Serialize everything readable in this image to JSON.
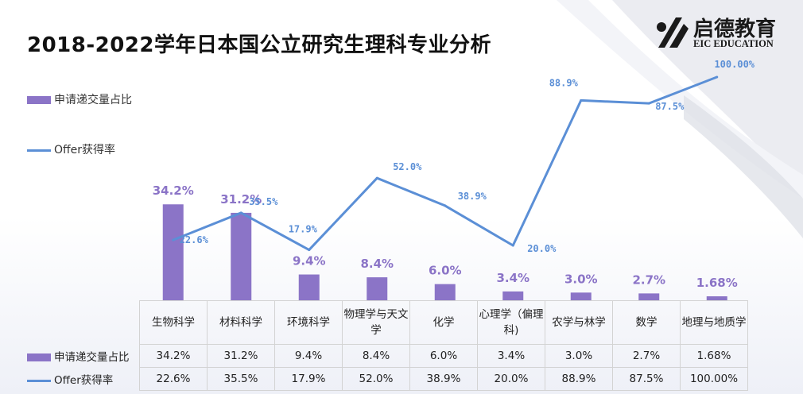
{
  "title": "2018-2022学年日本国公立研究生理科专业分析",
  "logo": {
    "cn": "启德教育",
    "en": "EIC EDUCATION"
  },
  "legend": {
    "bar": "申请递交量占比",
    "line": "Offer获得率"
  },
  "colors": {
    "bar": "#8b74c7",
    "line": "#5b8fd6",
    "bar_label": "#8b74c7",
    "line_label": "#5b8fd6"
  },
  "table": {
    "headers": [
      "生物科学",
      "材料科学",
      "环境科学",
      "物理学与天文学",
      "化学",
      "心理学（偏理科)",
      "农学与林学",
      "数学",
      "地理与地质学"
    ],
    "rows": [
      {
        "label": "申请递交量占比",
        "values": [
          "34.2%",
          "31.2%",
          "9.4%",
          "8.4%",
          "6.0%",
          "3.4%",
          "3.0%",
          "2.7%",
          "1.68%"
        ]
      },
      {
        "label": "Offer获得率",
        "values": [
          "22.6%",
          "35.5%",
          "17.9%",
          "52.0%",
          "38.9%",
          "20.0%",
          "88.9%",
          "87.5%",
          "100.00%"
        ]
      }
    ]
  },
  "chart_data": {
    "type": "bar",
    "categories": [
      "生物科学",
      "材料科学",
      "环境科学",
      "物理学与天文学",
      "化学",
      "心理学（偏理科)",
      "农学与林学",
      "数学",
      "地理与地质学"
    ],
    "series": [
      {
        "name": "申请递交量占比",
        "type": "bar",
        "values": [
          34.2,
          31.2,
          9.4,
          8.4,
          6.0,
          3.4,
          3.0,
          2.7,
          1.68
        ],
        "labels": [
          "34.2%",
          "31.2%",
          "9.4%",
          "8.4%",
          "6.0%",
          "3.4%",
          "3.0%",
          "2.7%",
          "1.68%"
        ]
      },
      {
        "name": "Offer获得率",
        "type": "line",
        "values": [
          22.6,
          35.5,
          17.9,
          52.0,
          38.9,
          20.0,
          88.9,
          87.5,
          100.0
        ],
        "labels": [
          "22.6%",
          "35.5%",
          "17.9%",
          "52.0%",
          "38.9%",
          "20.0%",
          "88.9%",
          "87.5%",
          "100.00%"
        ]
      }
    ],
    "title": "2018-2022学年日本国公立研究生理科专业分析",
    "legend_position": "left",
    "grid": false
  }
}
